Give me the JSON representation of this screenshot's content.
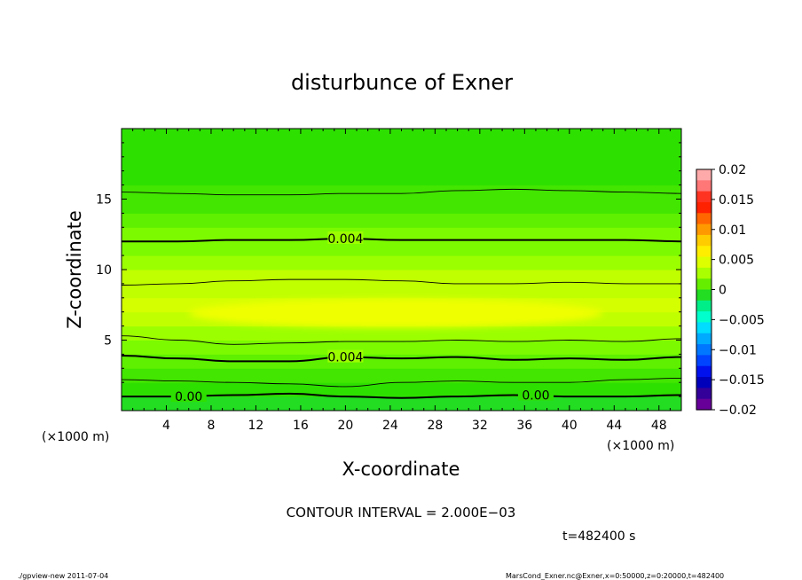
{
  "chart_data": {
    "type": "heatmap",
    "title": "disturbunce of Exner",
    "xlabel": "X-coordinate",
    "ylabel": "Z-coordinate",
    "x_unit_left": "(×1000 m)",
    "x_unit_right": "(×1000 m)",
    "xlim": [
      0,
      50
    ],
    "ylim": [
      0,
      20
    ],
    "x_ticks": [
      4,
      8,
      12,
      16,
      20,
      24,
      28,
      32,
      36,
      40,
      44,
      48
    ],
    "y_ticks": [
      5,
      10,
      15
    ],
    "colorbar": {
      "ticks": [
        0.02,
        0.015,
        0.01,
        0.005,
        0,
        -0.005,
        -0.01,
        -0.015,
        -0.02
      ],
      "tick_labels": [
        "0.02",
        "0.015",
        "0.01",
        "0.005",
        "0",
        "−0.005",
        "−0.01",
        "−0.015",
        "−0.02"
      ],
      "range": [
        -0.02,
        0.02
      ]
    },
    "bands": [
      {
        "level": 0.0075,
        "color": "#e6ff00"
      },
      {
        "level": 0.007,
        "color": "#d4ff00"
      },
      {
        "level": 0.006,
        "color": "#c0ff00"
      },
      {
        "level": 0.005,
        "color": "#9cff00"
      },
      {
        "level": 0.004,
        "color": "#7cfa00"
      },
      {
        "level": 0.003,
        "color": "#5ef000"
      },
      {
        "level": 0.002,
        "color": "#42e600"
      },
      {
        "level": 0.001,
        "color": "#2ee000"
      },
      {
        "level": 0.0,
        "color": "#22dd22"
      }
    ],
    "contour_lines": [
      {
        "level": 0.0,
        "z": [
          1.0,
          1.0,
          1.1,
          1.2,
          1.0,
          0.9,
          1.0,
          1.1,
          1.0,
          1.0,
          1.1
        ],
        "bold": true,
        "label": "0.00"
      },
      {
        "level": 0.002,
        "z": [
          2.2,
          2.1,
          2.0,
          1.9,
          1.7,
          2.0,
          2.1,
          2.0,
          2.0,
          2.2,
          2.3
        ],
        "bold": false
      },
      {
        "level": 0.004,
        "z": [
          3.9,
          3.7,
          3.5,
          3.5,
          3.8,
          3.7,
          3.8,
          3.6,
          3.7,
          3.6,
          3.8
        ],
        "bold": true,
        "label": "0.004"
      },
      {
        "level": 0.006,
        "z": [
          5.3,
          5.0,
          4.7,
          4.8,
          4.9,
          4.9,
          5.0,
          4.9,
          5.0,
          4.9,
          5.1
        ],
        "bold": false
      },
      {
        "level": 0.006,
        "z": [
          8.9,
          9.0,
          9.2,
          9.3,
          9.3,
          9.2,
          9.0,
          9.0,
          9.1,
          9.0,
          9.0
        ],
        "bold": false
      },
      {
        "level": 0.004,
        "z": [
          12.0,
          12.0,
          12.1,
          12.1,
          12.2,
          12.1,
          12.1,
          12.1,
          12.1,
          12.1,
          12.0
        ],
        "bold": true,
        "label": "0.004"
      },
      {
        "level": 0.002,
        "z": [
          15.5,
          15.4,
          15.3,
          15.3,
          15.4,
          15.4,
          15.6,
          15.7,
          15.6,
          15.5,
          15.4
        ],
        "bold": false
      }
    ],
    "contour_x": [
      0,
      5,
      10,
      15,
      20,
      25,
      30,
      35,
      40,
      45,
      50
    ],
    "annotations": {
      "contour_interval": "CONTOUR INTERVAL = 2.000E−03",
      "time": "t=482400 s",
      "footer_left": "./gpview-new   2011-07-04",
      "footer_right": "MarsCond_Exner.nc@Exner,x=0:50000,z=0:20000,t=482400"
    },
    "grid": false
  }
}
